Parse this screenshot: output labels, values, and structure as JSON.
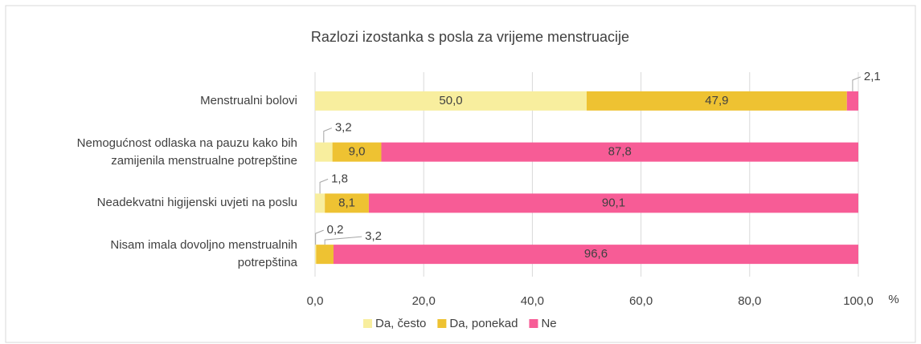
{
  "chart_data": {
    "type": "stacked_bar_horizontal",
    "title": "Razlozi izostanka s posla za vrijeme menstruacije",
    "categories": [
      "Menstrualni bolovi",
      "Nemogućnost odlaska na pauzu kako bih\nzamijenila menstrualne potrepštine",
      "Neadekvatni higijenski uvjeti na poslu",
      "Nisam imala dovoljno menstrualnih\npotrepština"
    ],
    "series": [
      {
        "name": "Da, često",
        "color": "#f8ee9e",
        "values": [
          50.0,
          3.2,
          1.8,
          0.2
        ],
        "value_labels": [
          "50,0",
          "3,2",
          "1,8",
          "0,2"
        ]
      },
      {
        "name": "Da, ponekad",
        "color": "#eec232",
        "values": [
          47.9,
          9.0,
          8.1,
          3.2
        ],
        "value_labels": [
          "47,9",
          "9,0",
          "8,1",
          "3,2"
        ]
      },
      {
        "name": "Ne",
        "color": "#f75c96",
        "values": [
          2.1,
          87.8,
          90.1,
          96.6
        ],
        "value_labels": [
          "2,1",
          "87,8",
          "90,1",
          "96,6"
        ]
      }
    ],
    "xlabel": "%",
    "xlim": [
      0,
      100
    ],
    "xticks": [
      {
        "value": 0,
        "label": "0,0"
      },
      {
        "value": 20,
        "label": "20,0"
      },
      {
        "value": 40,
        "label": "40,0"
      },
      {
        "value": 60,
        "label": "60,0"
      },
      {
        "value": 80,
        "label": "80,0"
      },
      {
        "value": 100,
        "label": "100,0"
      }
    ],
    "grid": true,
    "legend": "bottom"
  }
}
